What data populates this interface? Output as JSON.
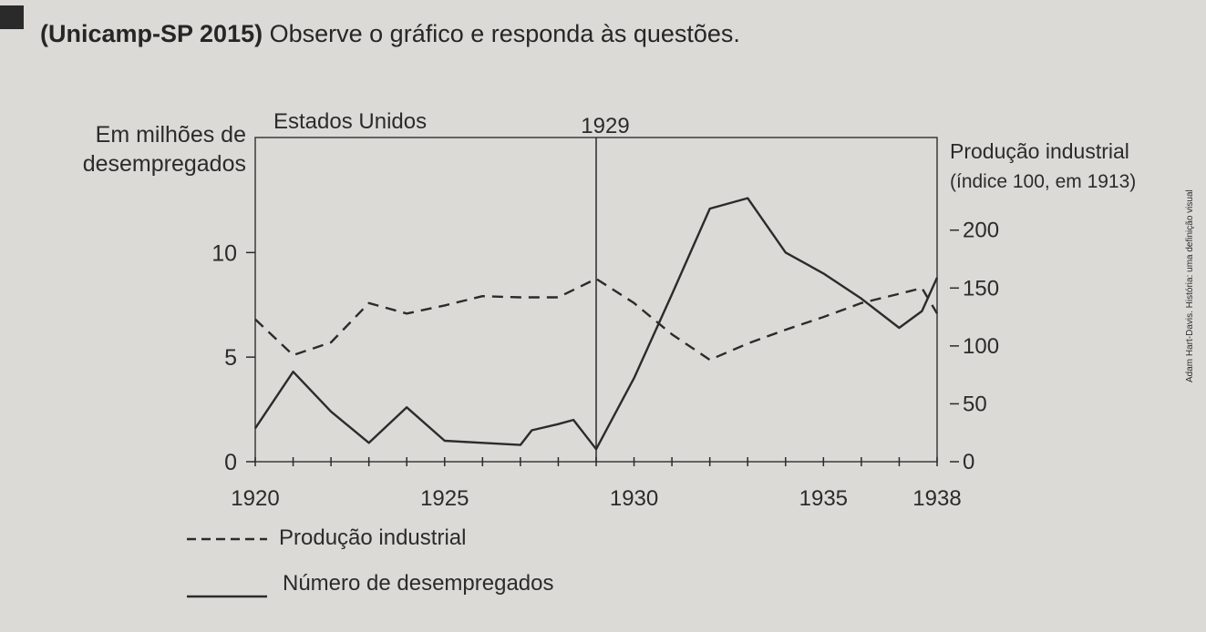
{
  "heading": {
    "source": "(Unicamp-SP 2015)",
    "text": "Observe o gráfico e responda às questões."
  },
  "side_credit": "Adam Hart-Davis. História: uma definição visual",
  "colors": {
    "background": "#dcdad6",
    "ink": "#2b2b2b",
    "plot_border": "#3a3a3a"
  },
  "chart_data": {
    "type": "line",
    "title": "Estados Unidos",
    "event_label": "1929",
    "event_x": 1929,
    "ylabel_left": [
      "Em milhões de",
      "desempregados"
    ],
    "ylabel_right": [
      "Produção industrial",
      "(índice 100, em 1913)"
    ],
    "xlim": [
      1920,
      1938
    ],
    "ylim_left": [
      0,
      15.5
    ],
    "ylim_right": [
      0,
      280
    ],
    "x_ticks": [
      1920,
      1921,
      1922,
      1923,
      1924,
      1925,
      1926,
      1927,
      1928,
      1929,
      1930,
      1931,
      1932,
      1933,
      1934,
      1935,
      1936,
      1937,
      1938
    ],
    "x_tick_labels": [
      {
        "x": 1920,
        "label": "1920"
      },
      {
        "x": 1925,
        "label": "1925"
      },
      {
        "x": 1930,
        "label": "1930"
      },
      {
        "x": 1935,
        "label": "1935"
      },
      {
        "x": 1938,
        "label": "1938"
      }
    ],
    "left_ticks": [
      {
        "y": 0,
        "label": "0"
      },
      {
        "y": 5,
        "label": "5"
      },
      {
        "y": 10,
        "label": "10"
      }
    ],
    "right_ticks": [
      {
        "y": 0,
        "label": "0"
      },
      {
        "y": 50,
        "label": "50"
      },
      {
        "y": 100,
        "label": "100"
      },
      {
        "y": 150,
        "label": "150"
      },
      {
        "y": 200,
        "label": "200"
      }
    ],
    "series": [
      {
        "name": "Produção industrial",
        "axis": "right",
        "style": "dashed",
        "points": [
          [
            1920,
            123
          ],
          [
            1921,
            92
          ],
          [
            1922,
            103
          ],
          [
            1923,
            137
          ],
          [
            1924,
            128
          ],
          [
            1925,
            135
          ],
          [
            1926,
            143
          ],
          [
            1927,
            142
          ],
          [
            1928,
            142
          ],
          [
            1929,
            158
          ],
          [
            1930,
            137
          ],
          [
            1931,
            110
          ],
          [
            1932,
            88
          ],
          [
            1933,
            102
          ],
          [
            1934,
            114
          ],
          [
            1935,
            125
          ],
          [
            1936,
            137
          ],
          [
            1937,
            145
          ],
          [
            1937.6,
            150
          ],
          [
            1938,
            128
          ]
        ]
      },
      {
        "name": "Número de desempregados",
        "axis": "left",
        "style": "solid",
        "points": [
          [
            1920,
            1.6
          ],
          [
            1921,
            4.3
          ],
          [
            1922,
            2.4
          ],
          [
            1923,
            0.9
          ],
          [
            1924,
            2.6
          ],
          [
            1925,
            1.0
          ],
          [
            1926,
            0.9
          ],
          [
            1927,
            0.8
          ],
          [
            1927.3,
            1.5
          ],
          [
            1928,
            1.8
          ],
          [
            1928.4,
            2.0
          ],
          [
            1929,
            0.6
          ],
          [
            1930,
            4.0
          ],
          [
            1931,
            8.0
          ],
          [
            1932,
            12.1
          ],
          [
            1933,
            12.6
          ],
          [
            1934,
            10.0
          ],
          [
            1935,
            9.0
          ],
          [
            1936,
            7.8
          ],
          [
            1937,
            6.4
          ],
          [
            1937.6,
            7.2
          ],
          [
            1938,
            8.8
          ]
        ]
      }
    ],
    "legend": [
      {
        "label": "Produção industrial",
        "style": "dashed"
      },
      {
        "label": "Número de desempregados",
        "style": "solid"
      }
    ]
  }
}
